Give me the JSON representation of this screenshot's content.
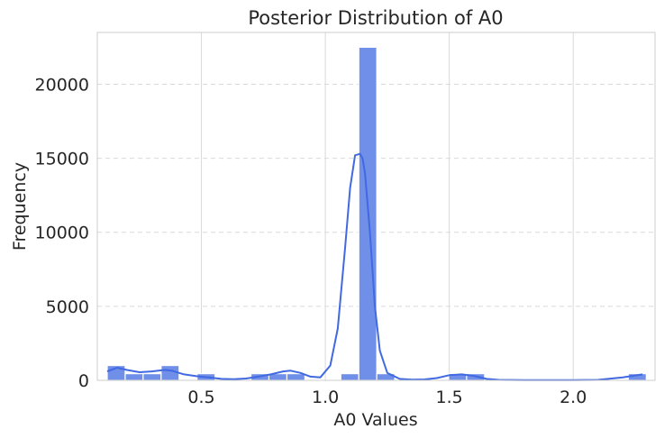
{
  "chart_data": {
    "type": "bar",
    "title": "Posterior Distribution of A0",
    "xlabel": "A0 Values",
    "ylabel": "Frequency",
    "xlim": [
      0.08,
      2.33
    ],
    "ylim": [
      0,
      23500
    ],
    "xticks": [
      0.5,
      1.0,
      1.5,
      2.0
    ],
    "yticks": [
      0,
      5000,
      10000,
      15000,
      20000
    ],
    "xtick_labels": [
      "0.5",
      "1.0",
      "1.5",
      "2.0"
    ],
    "ytick_labels": [
      "0",
      "5000",
      "10000",
      "15000",
      "20000"
    ],
    "grid": true,
    "bin_width": 0.0725,
    "bins": [
      {
        "x0": 0.12,
        "value": 1000
      },
      {
        "x0": 0.1925,
        "value": 450
      },
      {
        "x0": 0.265,
        "value": 450
      },
      {
        "x0": 0.3375,
        "value": 1000
      },
      {
        "x0": 0.41,
        "value": 0
      },
      {
        "x0": 0.4825,
        "value": 450
      },
      {
        "x0": 0.555,
        "value": 0
      },
      {
        "x0": 0.6275,
        "value": 0
      },
      {
        "x0": 0.7,
        "value": 450
      },
      {
        "x0": 0.7725,
        "value": 450
      },
      {
        "x0": 0.845,
        "value": 450
      },
      {
        "x0": 0.9175,
        "value": 0
      },
      {
        "x0": 0.99,
        "value": 0
      },
      {
        "x0": 1.0625,
        "value": 450
      },
      {
        "x0": 1.135,
        "value": 22500
      },
      {
        "x0": 1.2075,
        "value": 450
      },
      {
        "x0": 1.28,
        "value": 0
      },
      {
        "x0": 1.3525,
        "value": 0
      },
      {
        "x0": 1.425,
        "value": 0
      },
      {
        "x0": 1.4975,
        "value": 450
      },
      {
        "x0": 1.57,
        "value": 450
      },
      {
        "x0": 1.6425,
        "value": 0
      },
      {
        "x0": 1.715,
        "value": 0
      },
      {
        "x0": 1.7875,
        "value": 0
      },
      {
        "x0": 1.86,
        "value": 0
      },
      {
        "x0": 1.9325,
        "value": 0
      },
      {
        "x0": 2.005,
        "value": 0
      },
      {
        "x0": 2.0775,
        "value": 0
      },
      {
        "x0": 2.15,
        "value": 0
      },
      {
        "x0": 2.2225,
        "value": 450
      }
    ],
    "kde": {
      "x": [
        0.12,
        0.16,
        0.2,
        0.25,
        0.3,
        0.35,
        0.38,
        0.43,
        0.48,
        0.53,
        0.58,
        0.63,
        0.68,
        0.73,
        0.78,
        0.83,
        0.86,
        0.9,
        0.94,
        0.98,
        1.02,
        1.05,
        1.08,
        1.1,
        1.12,
        1.14,
        1.15,
        1.16,
        1.18,
        1.2,
        1.22,
        1.25,
        1.3,
        1.35,
        1.4,
        1.45,
        1.5,
        1.55,
        1.6,
        1.65,
        1.7,
        1.8,
        1.9,
        2.0,
        2.1,
        2.2,
        2.28
      ],
      "y": [
        600,
        850,
        700,
        550,
        600,
        700,
        650,
        400,
        280,
        200,
        100,
        80,
        120,
        250,
        400,
        600,
        650,
        500,
        250,
        200,
        1000,
        3500,
        9000,
        13000,
        15200,
        15300,
        15000,
        14000,
        10000,
        5000,
        2000,
        500,
        100,
        50,
        60,
        150,
        350,
        400,
        300,
        100,
        30,
        20,
        20,
        20,
        30,
        200,
        400
      ]
    },
    "colors": {
      "bar_fill": "#6f8fe8",
      "bar_edge": "#ffffff",
      "kde_line": "#4169e1",
      "grid": "#d9d9d9",
      "spine": "#cccccc",
      "text": "#262626"
    }
  }
}
